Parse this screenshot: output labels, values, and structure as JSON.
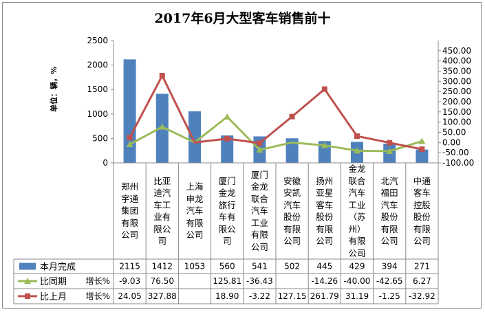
{
  "chart_data": {
    "type": "bar+line",
    "title": "2017年6月大型客车销售前十",
    "ylabel": "单位：辆，%",
    "ylim_left": [
      0,
      2500
    ],
    "ylim_right": [
      -100,
      500
    ],
    "left_ticks": [
      "0",
      "500",
      "1000",
      "1500",
      "2000",
      "2500"
    ],
    "right_ticks": [
      "-100.00",
      "-50.00",
      "0.00",
      "50.00",
      "100.00",
      "150.00",
      "200.00",
      "250.00",
      "300.00",
      "350.00",
      "400.00",
      "450.00"
    ],
    "categories": [
      "郑州宇通集团有限公司",
      "比亚迪汽车工业有限公司",
      "上海申龙汽车有限公司",
      "厦门金龙旅行车有限公司",
      "厦门金龙联合汽车工业有限公司",
      "安徽安凯汽车股份有限公司",
      "扬州亚星客车股份有限公司",
      "金龙联合汽车工业（苏州）有限公司",
      "北汽福田汽车股份有限公司",
      "中通客车控股股份有限公司"
    ],
    "series": [
      {
        "name": "本月完成",
        "type": "bar",
        "axis": "left",
        "color": "#4F81BD",
        "values": [
          2115,
          1412,
          1053,
          560,
          541,
          502,
          445,
          429,
          394,
          271
        ],
        "labels": [
          "2115",
          "1412",
          "1053",
          "560",
          "541",
          "502",
          "445",
          "429",
          "394",
          "271"
        ]
      },
      {
        "name": "比同期",
        "suffix": "增长%",
        "type": "line",
        "axis": "right",
        "color": "#9BBB59",
        "values": [
          -9.03,
          76.5,
          null,
          125.81,
          -36.43,
          null,
          -14.26,
          -40.0,
          -42.65,
          6.27
        ],
        "labels": [
          "-9.03",
          "76.50",
          "",
          "125.81",
          "-36.43",
          "",
          "-14.26",
          "-40.00",
          "-42.65",
          "6.27"
        ]
      },
      {
        "name": "比上月",
        "suffix": "增长%",
        "type": "line",
        "axis": "right",
        "color": "#C0504D",
        "values": [
          24.05,
          327.88,
          null,
          18.9,
          -3.22,
          127.15,
          261.79,
          31.19,
          -1.25,
          -32.92
        ],
        "labels": [
          "24.05",
          "327.88",
          "",
          "18.90",
          "-3.22",
          "127.15",
          "261.79",
          "31.19",
          "-1.25",
          "-32.92"
        ]
      }
    ]
  }
}
